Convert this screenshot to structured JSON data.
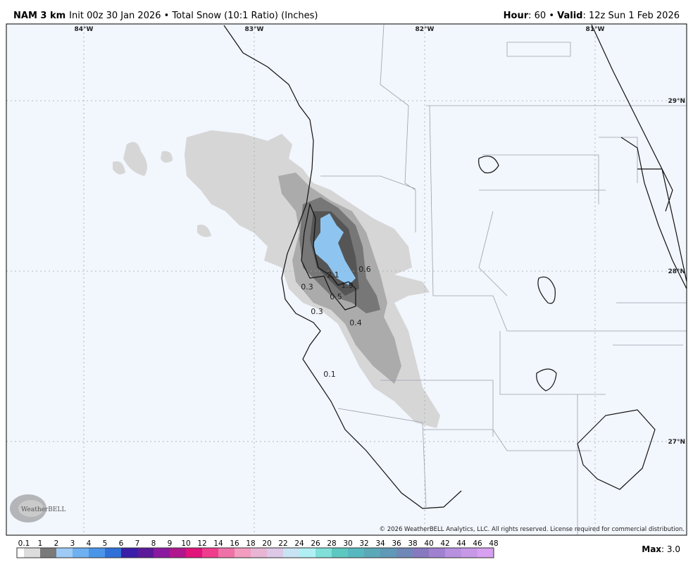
{
  "header": {
    "model": "NAM 3 km",
    "init": "Init 00z 30 Jan 2026 • Total Snow (10:1 Ratio) (Inches)",
    "hour_label": "Hour",
    "hour_value": ": 60 • ",
    "valid_label": "Valid",
    "valid_value": ": 12z Sun 1 Feb 2026"
  },
  "map": {
    "longitudes": [
      "84°W",
      "83°W",
      "82°W",
      "81°W"
    ],
    "latitudes": [
      "29°N",
      "28°N",
      "27°N"
    ],
    "contour_labels": [
      "0.6",
      "2.1",
      "1.9",
      "0.3",
      "0.5",
      "0.3",
      "0.4",
      "0.1"
    ],
    "copyright": "© 2026 WeatherBELL Analytics, LLC. All rights reserved. License required for commercial distribution.",
    "logo": "WeatherBELL"
  },
  "legend": {
    "levels": [
      0.1,
      1,
      2,
      3,
      4,
      5,
      6,
      7,
      8,
      9,
      10,
      12,
      14,
      16,
      18,
      20,
      22,
      24,
      26,
      28,
      30,
      32,
      34,
      36,
      38,
      40,
      42,
      44,
      46,
      48
    ],
    "colors": [
      "#ffffff",
      "#dcdcdc",
      "#7a7a7a",
      "#9ecbf5",
      "#6fb0f0",
      "#4a95e8",
      "#2f6fd8",
      "#3a1fa8",
      "#5a1a9a",
      "#8a1aa0",
      "#b0178f",
      "#e0147a",
      "#f03c8c",
      "#f070a8",
      "#f29cc0",
      "#e8b6d4",
      "#ddc8e8",
      "#c8e4f4",
      "#b0f0f4",
      "#80e0d8",
      "#5cc8c0",
      "#58b8c0",
      "#5aa8b8",
      "#6098b8",
      "#7088b8",
      "#8878c0",
      "#a080d0",
      "#b890e0",
      "#c898e8",
      "#d8a0f0"
    ],
    "max_label": "Max",
    "max_value": ": 3.0"
  }
}
